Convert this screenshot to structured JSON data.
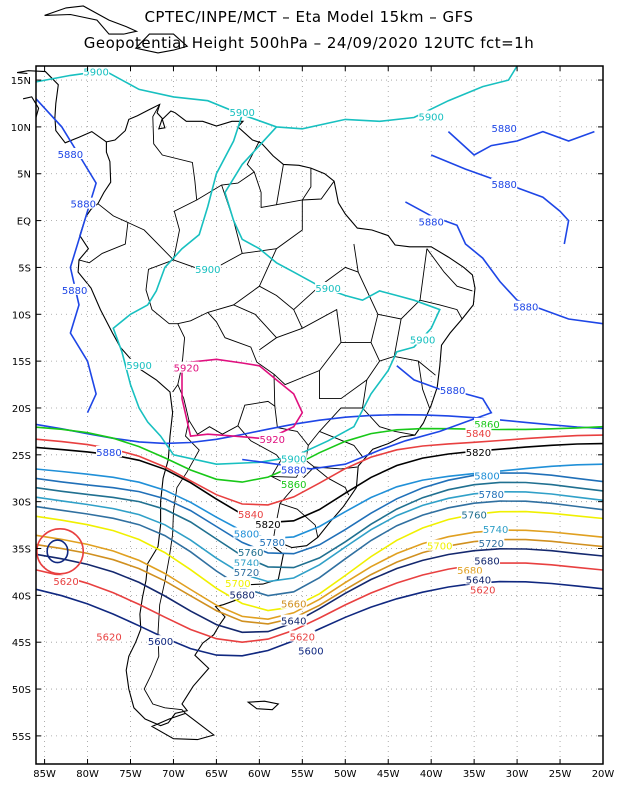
{
  "title_line1": "CPTEC/INPE/MCT –  Eta Model 15km – GFS",
  "title_line2": "Geopotential Height 500hPa – 24/09/2020 12UTC fct=1h",
  "lat_labels": [
    "15N",
    "10N",
    "5N",
    "EQ",
    "5S",
    "10S",
    "15S",
    "20S",
    "25S",
    "30S",
    "35S",
    "40S",
    "45S",
    "50S",
    "55S"
  ],
  "lon_labels": [
    "85W",
    "80W",
    "75W",
    "70W",
    "65W",
    "60W",
    "55W",
    "50W",
    "45W",
    "40W",
    "35W",
    "30W",
    "25W",
    "20W"
  ],
  "contour_levels": [
    {
      "value": "5920",
      "color": "#e0107f"
    },
    {
      "value": "5900",
      "color": "#18c0c0"
    },
    {
      "value": "5880",
      "color": "#1e46e6"
    },
    {
      "value": "5860",
      "color": "#18c818"
    },
    {
      "value": "5840",
      "color": "#e84040"
    },
    {
      "value": "5820",
      "color": "#000000"
    },
    {
      "value": "5800",
      "color": "#2090d8"
    },
    {
      "value": "5780",
      "color": "#2070b8"
    },
    {
      "value": "5760",
      "color": "#207090"
    },
    {
      "value": "5740",
      "color": "#30a0c8"
    },
    {
      "value": "5720",
      "color": "#3070a0"
    },
    {
      "value": "5700",
      "color": "#f0f000"
    },
    {
      "value": "5680",
      "color": "#e0a020"
    },
    {
      "value": "5660",
      "color": "#d09020"
    },
    {
      "value": "5640",
      "color": "#14286e"
    },
    {
      "value": "5620",
      "color": "#e84040"
    },
    {
      "value": "5600",
      "color": "#102880"
    }
  ],
  "contour_labels": [
    {
      "text": "5900",
      "color": "#18c0c0",
      "lon": -79,
      "lat": 15.8
    },
    {
      "text": "5900",
      "color": "#18c0c0",
      "lon": -62,
      "lat": 11.5
    },
    {
      "text": "5900",
      "color": "#18c0c0",
      "lon": -40,
      "lat": 11.0
    },
    {
      "text": "5900",
      "color": "#18c0c0",
      "lon": -66,
      "lat": -5.3
    },
    {
      "text": "5900",
      "color": "#18c0c0",
      "lon": -52,
      "lat": -7.3
    },
    {
      "text": "5900",
      "color": "#18c0c0",
      "lon": -74,
      "lat": -15.5
    },
    {
      "text": "5900",
      "color": "#18c0c0",
      "lon": -41,
      "lat": -12.8
    },
    {
      "text": "5880",
      "color": "#1e46e6",
      "lon": -82,
      "lat": 7.0
    },
    {
      "text": "5880",
      "color": "#1e46e6",
      "lon": -80.5,
      "lat": 1.7
    },
    {
      "text": "5880",
      "color": "#1e46e6",
      "lon": -81.5,
      "lat": -7.5
    },
    {
      "text": "5880",
      "color": "#1e46e6",
      "lon": -31.5,
      "lat": 9.8
    },
    {
      "text": "5880",
      "color": "#1e46e6",
      "lon": -31.5,
      "lat": 3.8
    },
    {
      "text": "5880",
      "color": "#1e46e6",
      "lon": -40,
      "lat": -0.2
    },
    {
      "text": "5880",
      "color": "#1e46e6",
      "lon": -29,
      "lat": -9.3
    },
    {
      "text": "5880",
      "color": "#1e46e6",
      "lon": -37.5,
      "lat": -18.2
    },
    {
      "text": "5880",
      "color": "#1e46e6",
      "lon": -77.5,
      "lat": -24.8
    },
    {
      "text": "5880",
      "color": "#1e46e6",
      "lon": -56,
      "lat": -26.7
    },
    {
      "text": "5920",
      "color": "#e0107f",
      "lon": -68.5,
      "lat": -15.8
    },
    {
      "text": "5920",
      "color": "#e0107f",
      "lon": -58.5,
      "lat": -23.4
    },
    {
      "text": "5900",
      "color": "#18c0c0",
      "lon": -56,
      "lat": -25.5
    },
    {
      "text": "5860",
      "color": "#18c818",
      "lon": -56,
      "lat": -28.2
    },
    {
      "text": "5860",
      "color": "#18c818",
      "lon": -33.5,
      "lat": -21.8
    },
    {
      "text": "5840",
      "color": "#e84040",
      "lon": -34.5,
      "lat": -22.8
    },
    {
      "text": "5840",
      "color": "#e84040",
      "lon": -61,
      "lat": -31.4
    },
    {
      "text": "5820",
      "color": "#000000",
      "lon": -34.5,
      "lat": -24.8
    },
    {
      "text": "5820",
      "color": "#000000",
      "lon": -59,
      "lat": -32.5
    },
    {
      "text": "5800",
      "color": "#2090d8",
      "lon": -33.5,
      "lat": -27.3
    },
    {
      "text": "5800",
      "color": "#2090d8",
      "lon": -61.5,
      "lat": -33.5
    },
    {
      "text": "5780",
      "color": "#2070b8",
      "lon": -33,
      "lat": -29.3
    },
    {
      "text": "5780",
      "color": "#2070b8",
      "lon": -58.5,
      "lat": -34.4
    },
    {
      "text": "5760",
      "color": "#207090",
      "lon": -35,
      "lat": -31.5
    },
    {
      "text": "5760",
      "color": "#207090",
      "lon": -61,
      "lat": -35.5
    },
    {
      "text": "5740",
      "color": "#30a0c8",
      "lon": -32.5,
      "lat": -33.0
    },
    {
      "text": "5740",
      "color": "#30a0c8",
      "lon": -61.5,
      "lat": -36.6
    },
    {
      "text": "5720",
      "color": "#3070a0",
      "lon": -33,
      "lat": -34.5
    },
    {
      "text": "5720",
      "color": "#3070a0",
      "lon": -61.5,
      "lat": -37.6
    },
    {
      "text": "5700",
      "color": "#f0f000",
      "lon": -39,
      "lat": -34.8
    },
    {
      "text": "5700",
      "color": "#f0f000",
      "lon": -62.5,
      "lat": -38.8
    },
    {
      "text": "5680",
      "color": "#e0a020",
      "lon": -35.5,
      "lat": -37.4
    },
    {
      "text": "5680",
      "color": "#14286e",
      "lon": -33.5,
      "lat": -36.4
    },
    {
      "text": "5680",
      "color": "#14286e",
      "lon": -62,
      "lat": -40.0
    },
    {
      "text": "5660",
      "color": "#d09020",
      "lon": -56,
      "lat": -41.0
    },
    {
      "text": "5640",
      "color": "#14286e",
      "lon": -34.5,
      "lat": -38.4
    },
    {
      "text": "5640",
      "color": "#14286e",
      "lon": -56,
      "lat": -42.8
    },
    {
      "text": "5620",
      "color": "#e84040",
      "lon": -34,
      "lat": -39.5
    },
    {
      "text": "5620",
      "color": "#e84040",
      "lon": -55,
      "lat": -44.5
    },
    {
      "text": "5620",
      "color": "#e84040",
      "lon": -82.5,
      "lat": -38.6
    },
    {
      "text": "5620",
      "color": "#e84040",
      "lon": -77.5,
      "lat": -44.5
    },
    {
      "text": "5600",
      "color": "#102880",
      "lon": -71.5,
      "lat": -45.0
    },
    {
      "text": "5600",
      "color": "#102880",
      "lon": -54,
      "lat": -46.0
    }
  ]
}
